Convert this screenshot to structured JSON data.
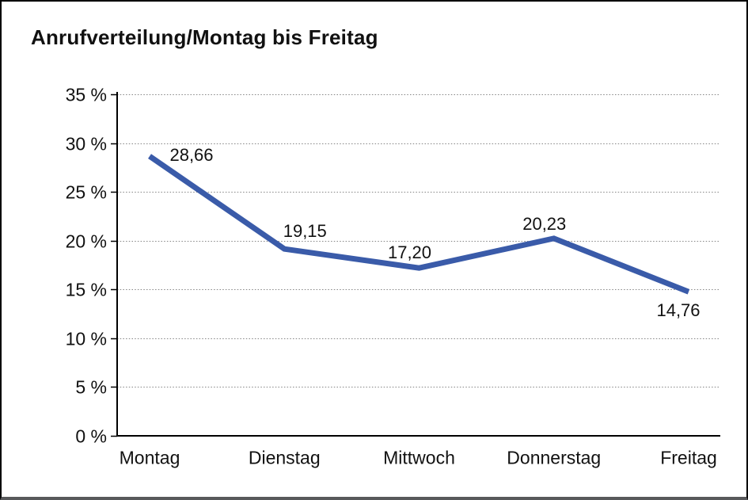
{
  "window": {
    "title": "Anrufverteilung/Montag bis Freitag"
  },
  "chart_data": {
    "type": "line",
    "title": "Anrufverteilung/Montag bis Freitag",
    "categories": [
      "Montag",
      "Dienstag",
      "Mittwoch",
      "Donnerstag",
      "Freitag"
    ],
    "values": [
      28.66,
      19.15,
      17.2,
      20.23,
      14.76
    ],
    "value_labels": [
      "28,66",
      "19,15",
      "17,20",
      "20,23",
      "14,76"
    ],
    "series_name": "Anrufverteilung",
    "xlabel": "",
    "ylabel": "",
    "ylim": [
      0,
      35
    ],
    "y_tick_values": [
      0,
      5,
      10,
      15,
      20,
      25,
      30,
      35
    ],
    "y_tick_labels": [
      "0 %",
      "5 %",
      "10 %",
      "15 %",
      "20 %",
      "25 %",
      "30 %",
      "35 %"
    ],
    "grid": "horizontal-dotted",
    "legend": "none"
  },
  "colors": {
    "line": "#3A5BA9",
    "grid": "#858585",
    "axis": "#000000",
    "text": "#111111",
    "frame": "#000000",
    "frame_bottom": "#58595b",
    "background": "#ffffff"
  }
}
